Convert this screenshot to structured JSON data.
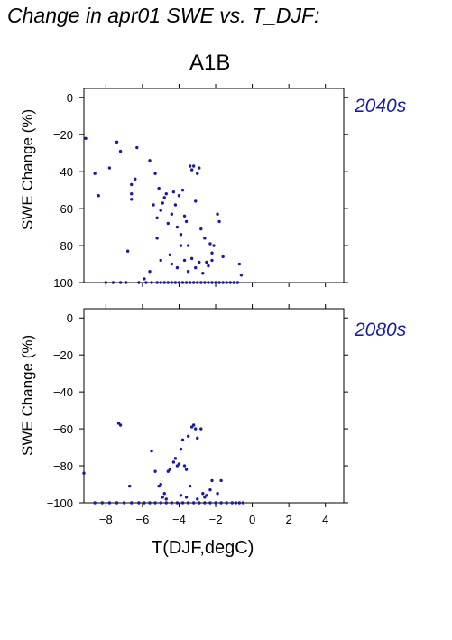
{
  "title": "Change in apr01 SWE vs. T_DJF:",
  "scenario": "A1B",
  "colors": {
    "points": "#1a1aa8",
    "period_labels": "#1a1aa8"
  },
  "chart_data": [
    {
      "type": "scatter",
      "period": "2040s",
      "xlabel": "",
      "ylabel": "SWE Change (%)",
      "xlim": [
        -9.2,
        5.0
      ],
      "ylim": [
        -100,
        5
      ],
      "xticks": [
        -8,
        -6,
        -4,
        -2,
        0,
        2,
        4
      ],
      "yticks": [
        0,
        -20,
        -40,
        -60,
        -80,
        -100
      ],
      "show_x_tick_labels": false,
      "points": [
        [
          -9.1,
          -22
        ],
        [
          -8.6,
          -41
        ],
        [
          -8.4,
          -53
        ],
        [
          -7.8,
          -38
        ],
        [
          -7.4,
          -24
        ],
        [
          -7.2,
          -29
        ],
        [
          -6.8,
          -83
        ],
        [
          -6.6,
          -47
        ],
        [
          -6.6,
          -52
        ],
        [
          -6.6,
          -55
        ],
        [
          -6.4,
          -44
        ],
        [
          -6.3,
          -27
        ],
        [
          -5.6,
          -34
        ],
        [
          -5.4,
          -58
        ],
        [
          -5.3,
          -41
        ],
        [
          -5.2,
          -65
        ],
        [
          -5.1,
          -49
        ],
        [
          -5.0,
          -61
        ],
        [
          -4.9,
          -57
        ],
        [
          -4.8,
          -54
        ],
        [
          -4.7,
          -52
        ],
        [
          -4.6,
          -68
        ],
        [
          -4.5,
          -85
        ],
        [
          -4.4,
          -63
        ],
        [
          -4.3,
          -51
        ],
        [
          -4.2,
          -58
        ],
        [
          -4.1,
          -70
        ],
        [
          -4.0,
          -53
        ],
        [
          -3.9,
          -74
        ],
        [
          -3.8,
          -50
        ],
        [
          -3.7,
          -64
        ],
        [
          -3.6,
          -67
        ],
        [
          -3.5,
          -80
        ],
        [
          -3.4,
          -37
        ],
        [
          -3.3,
          -39
        ],
        [
          -3.2,
          -37
        ],
        [
          -3.1,
          -56
        ],
        [
          -3.0,
          -41
        ],
        [
          -2.9,
          -38
        ],
        [
          -2.8,
          -71
        ],
        [
          -2.6,
          -76
        ],
        [
          -2.5,
          -89
        ],
        [
          -2.3,
          -79
        ],
        [
          -2.2,
          -84
        ],
        [
          -2.1,
          -80
        ],
        [
          -1.9,
          -63
        ],
        [
          -1.8,
          -67
        ],
        [
          -1.6,
          -86
        ],
        [
          -0.7,
          -90
        ],
        [
          -0.6,
          -96
        ],
        [
          -5.9,
          -98
        ],
        [
          -5.6,
          -94
        ],
        [
          -5.2,
          -76
        ],
        [
          -5.0,
          -88
        ],
        [
          -4.4,
          -90
        ],
        [
          -4.1,
          -92
        ],
        [
          -3.9,
          -80
        ],
        [
          -3.7,
          -88
        ],
        [
          -3.5,
          -94
        ],
        [
          -3.3,
          -87
        ],
        [
          -3.1,
          -92
        ],
        [
          -2.9,
          -89
        ],
        [
          -2.7,
          -95
        ],
        [
          -2.4,
          -91
        ],
        [
          -2.2,
          -88
        ],
        [
          -8.0,
          -100
        ],
        [
          -7.6,
          -100
        ],
        [
          -7.2,
          -100
        ],
        [
          -6.9,
          -100
        ],
        [
          -6.2,
          -100
        ],
        [
          -5.8,
          -100
        ],
        [
          -5.5,
          -100
        ],
        [
          -5.2,
          -100
        ],
        [
          -5.0,
          -100
        ],
        [
          -4.8,
          -100
        ],
        [
          -4.6,
          -100
        ],
        [
          -4.4,
          -100
        ],
        [
          -4.2,
          -100
        ],
        [
          -4.0,
          -100
        ],
        [
          -3.8,
          -100
        ],
        [
          -3.6,
          -100
        ],
        [
          -3.4,
          -100
        ],
        [
          -3.2,
          -100
        ],
        [
          -3.0,
          -100
        ],
        [
          -2.8,
          -100
        ],
        [
          -2.6,
          -100
        ],
        [
          -2.4,
          -100
        ],
        [
          -2.2,
          -100
        ],
        [
          -2.0,
          -100
        ],
        [
          -1.8,
          -100
        ],
        [
          -1.6,
          -100
        ],
        [
          -1.4,
          -100
        ],
        [
          -1.2,
          -100
        ],
        [
          -1.0,
          -100
        ],
        [
          -0.8,
          -100
        ]
      ]
    },
    {
      "type": "scatter",
      "period": "2080s",
      "xlabel": "T(DJF,degC)",
      "ylabel": "SWE Change (%)",
      "xlim": [
        -9.2,
        5.0
      ],
      "ylim": [
        -100,
        5
      ],
      "xticks": [
        -8,
        -6,
        -4,
        -2,
        0,
        2,
        4
      ],
      "yticks": [
        0,
        -20,
        -40,
        -60,
        -80,
        -100
      ],
      "xtick_labels": [
        "−8",
        "−6",
        "−4",
        "−2",
        "0",
        "2",
        "4"
      ],
      "ytick_labels": [
        "0",
        "−20",
        "−40",
        "−60",
        "−80",
        "−100"
      ],
      "show_x_tick_labels": true,
      "points": [
        [
          -9.2,
          -84
        ],
        [
          -7.3,
          -57
        ],
        [
          -7.2,
          -58
        ],
        [
          -6.7,
          -91
        ],
        [
          -5.5,
          -72
        ],
        [
          -5.3,
          -83
        ],
        [
          -5.1,
          -91
        ],
        [
          -5.0,
          -90
        ],
        [
          -4.8,
          -95
        ],
        [
          -4.6,
          -83
        ],
        [
          -4.5,
          -82
        ],
        [
          -4.3,
          -78
        ],
        [
          -4.2,
          -76
        ],
        [
          -4.1,
          -80
        ],
        [
          -4.0,
          -79
        ],
        [
          -3.9,
          -71
        ],
        [
          -3.8,
          -66
        ],
        [
          -3.7,
          -80
        ],
        [
          -3.6,
          -82
        ],
        [
          -3.5,
          -64
        ],
        [
          -3.4,
          -91
        ],
        [
          -3.3,
          -59
        ],
        [
          -3.2,
          -58
        ],
        [
          -3.1,
          -60
        ],
        [
          -3.0,
          -65
        ],
        [
          -2.8,
          -60
        ],
        [
          -2.7,
          -95
        ],
        [
          -2.5,
          -96
        ],
        [
          -2.3,
          -93
        ],
        [
          -2.2,
          -88
        ],
        [
          -1.9,
          -95
        ],
        [
          -1.7,
          -88
        ],
        [
          -4.9,
          -97
        ],
        [
          -4.7,
          -98
        ],
        [
          -3.9,
          -96
        ],
        [
          -3.6,
          -97
        ],
        [
          -3.0,
          -98
        ],
        [
          -2.6,
          -97
        ],
        [
          -8.6,
          -100
        ],
        [
          -8.2,
          -100
        ],
        [
          -7.8,
          -100
        ],
        [
          -7.4,
          -100
        ],
        [
          -7.0,
          -100
        ],
        [
          -6.6,
          -100
        ],
        [
          -6.2,
          -100
        ],
        [
          -5.9,
          -100
        ],
        [
          -5.6,
          -100
        ],
        [
          -5.3,
          -100
        ],
        [
          -5.0,
          -100
        ],
        [
          -4.7,
          -100
        ],
        [
          -4.4,
          -100
        ],
        [
          -4.1,
          -100
        ],
        [
          -3.8,
          -100
        ],
        [
          -3.5,
          -100
        ],
        [
          -3.2,
          -100
        ],
        [
          -2.9,
          -100
        ],
        [
          -2.6,
          -100
        ],
        [
          -2.3,
          -100
        ],
        [
          -2.0,
          -100
        ],
        [
          -1.7,
          -100
        ],
        [
          -1.4,
          -100
        ],
        [
          -1.1,
          -100
        ],
        [
          -0.9,
          -100
        ],
        [
          -0.7,
          -100
        ],
        [
          -0.5,
          -100
        ]
      ]
    }
  ]
}
